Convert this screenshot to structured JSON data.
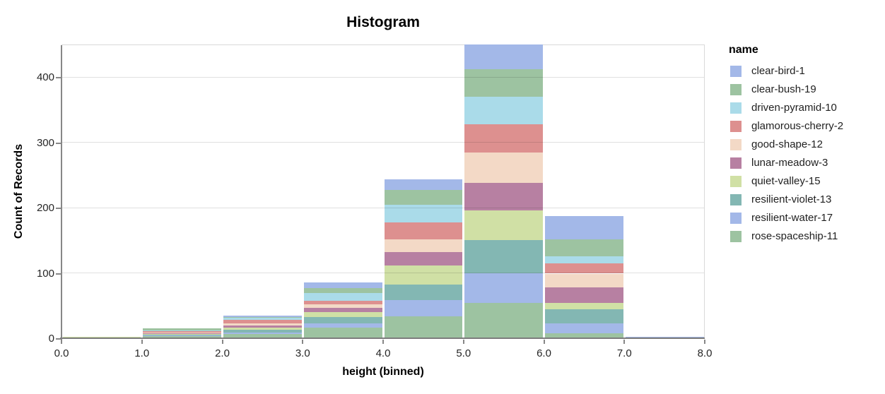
{
  "chart": {
    "title": "Histogram",
    "x_axis": {
      "title": "height (binned)",
      "tick_labels": [
        "0.0",
        "1.0",
        "2.0",
        "3.0",
        "4.0",
        "5.0",
        "6.0",
        "7.0",
        "8.0"
      ]
    },
    "y_axis": {
      "title": "Count of Records",
      "tick_values": [
        0,
        100,
        200,
        300,
        400
      ],
      "tick_labels": [
        "0",
        "100",
        "200",
        "300",
        "400"
      ]
    },
    "legend": {
      "title": "name",
      "position": "right"
    }
  },
  "chart_data": {
    "type": "bar",
    "variant": "stacked-histogram",
    "title": "Histogram",
    "xlabel": "height (binned)",
    "ylabel": "Count of Records",
    "x_bin_edges": [
      0,
      1,
      2,
      3,
      4,
      5,
      6,
      7,
      8
    ],
    "xlim": [
      0,
      8
    ],
    "ylim": [
      0,
      450
    ],
    "grid": "horizontal",
    "legend_position": "right",
    "stack_order": "bottom-to-top is reverse of series list",
    "bin_totals": [
      2,
      15,
      35,
      85,
      243,
      450,
      187,
      2
    ],
    "series": [
      {
        "name": "clear-bird-1",
        "color": "#a3b8e8",
        "values": [
          0,
          0,
          2,
          8,
          16,
          38,
          36,
          1
        ]
      },
      {
        "name": "clear-bush-19",
        "color": "#9dc3a1",
        "values": [
          0,
          3,
          1,
          8,
          23,
          42,
          25,
          0
        ]
      },
      {
        "name": "driven-pyramid-10",
        "color": "#aadbe9",
        "values": [
          0,
          1,
          4,
          12,
          27,
          42,
          11,
          0
        ]
      },
      {
        "name": "glamorous-cherry-2",
        "color": "#dd908f",
        "values": [
          0,
          2,
          5,
          5,
          25,
          43,
          16,
          0
        ]
      },
      {
        "name": "good-shape-12",
        "color": "#f3d9c6",
        "values": [
          0,
          1,
          4,
          5,
          20,
          47,
          21,
          0
        ]
      },
      {
        "name": "lunar-meadow-3",
        "color": "#b780a2",
        "values": [
          0,
          1,
          3,
          7,
          21,
          42,
          24,
          1
        ]
      },
      {
        "name": "quiet-valley-15",
        "color": "#d0e0a5",
        "values": [
          2,
          1,
          3,
          8,
          29,
          46,
          10,
          0
        ]
      },
      {
        "name": "resilient-violet-13",
        "color": "#83b7b3",
        "values": [
          0,
          2,
          4,
          9,
          24,
          50,
          21,
          0
        ]
      },
      {
        "name": "resilient-water-17",
        "color": "#a3b8e8",
        "values": [
          0,
          1,
          3,
          7,
          24,
          46,
          15,
          0
        ]
      },
      {
        "name": "rose-spaceship-11",
        "color": "#9dc3a1",
        "values": [
          0,
          3,
          6,
          16,
          34,
          54,
          8,
          0
        ]
      }
    ]
  }
}
